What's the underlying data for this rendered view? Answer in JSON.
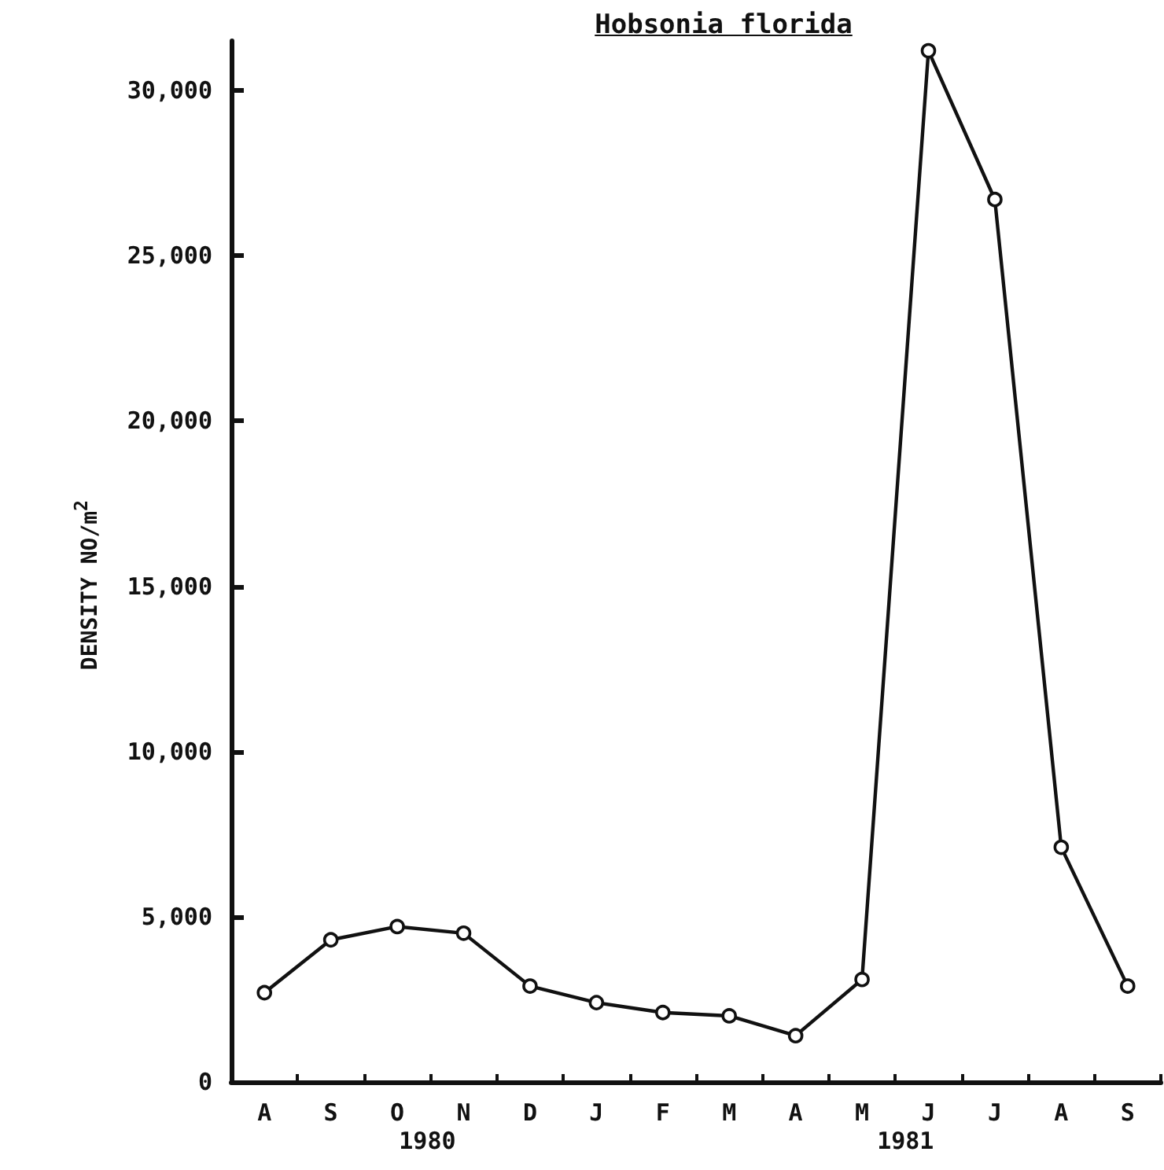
{
  "chart_data": {
    "type": "line",
    "title": "Hobsonia florida",
    "ylabel": "DENSITY NO/m$^{2}$",
    "categories": [
      "A",
      "S",
      "O",
      "N",
      "D",
      "J",
      "F",
      "M",
      "A",
      "M",
      "J",
      "J",
      "A",
      "S"
    ],
    "series": [
      {
        "color": "#111111",
        "values": [
          2700,
          4300,
          4700,
          4500,
          2900,
          2400,
          2100,
          2000,
          1400,
          3100,
          31200,
          26700,
          7100,
          2900
        ]
      }
    ],
    "ylim": [
      0,
      31500
    ],
    "yticks": [
      0,
      {
        "value": 5000,
        "label": "5,000"
      },
      {
        "value": 10000,
        "label": "10,000"
      },
      {
        "value": 15000,
        "label": "15,000"
      },
      {
        "value": 20000,
        "label": "20,000"
      },
      {
        "value": 25000,
        "label": "25,000"
      },
      {
        "value": 30000,
        "label": "30,000"
      }
    ],
    "annotations": [
      "1980",
      "1981"
    ],
    "marker": "circle",
    "line_style": "solid",
    "grid": false
  }
}
